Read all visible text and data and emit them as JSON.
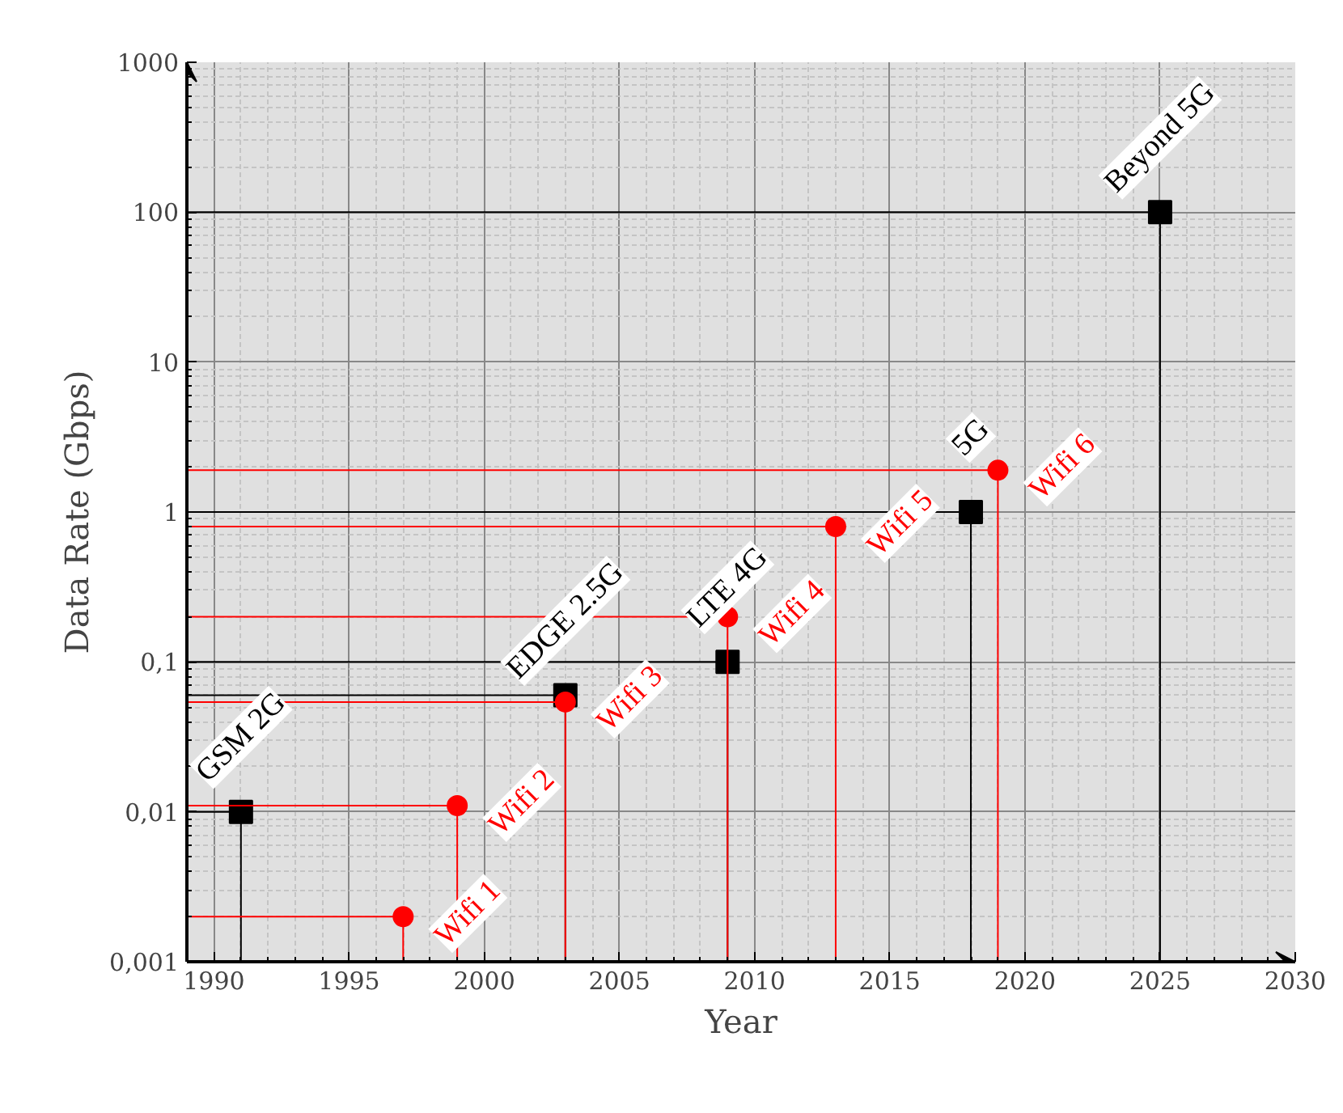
{
  "chart_data": {
    "type": "scatter",
    "xlabel": "Year",
    "ylabel": "Data Rate (Gbps)",
    "xlim": [
      1989,
      2030
    ],
    "ylim": [
      0.001,
      1000
    ],
    "log": "y",
    "grid": true,
    "annotations": [
      {
        "text": "GSM 2G",
        "x": 1991,
        "y": 0.01
      },
      {
        "text": "EDGE 2.5G",
        "x": 2003,
        "y": 0.06
      },
      {
        "text": "LTE 4G",
        "x": 2009,
        "y": 0.1
      },
      {
        "text": "5G",
        "x": 2018,
        "y": 1
      },
      {
        "text": "Beyond 5G",
        "x": 2025,
        "y": 100
      },
      {
        "text": "Wifi 1",
        "x": 1997,
        "y": 0.002
      },
      {
        "text": "Wifi 2",
        "x": 1999,
        "y": 0.011
      },
      {
        "text": "Wifi 3",
        "x": 2003,
        "y": 0.054
      },
      {
        "text": "Wifi 4",
        "x": 2009,
        "y": 0.2
      },
      {
        "text": "Wifi 5",
        "x": 2013,
        "y": 0.8
      },
      {
        "text": "Wifi 6",
        "x": 2019,
        "y": 1.9
      }
    ],
    "xticks": [
      1990,
      1995,
      2000,
      2005,
      2010,
      2015,
      2020,
      2025,
      2030
    ],
    "yticks": [
      {
        "value": 0.001,
        "label": "0,001"
      },
      {
        "value": 0.01,
        "label": "0,01"
      },
      {
        "value": 0.1,
        "label": "0,1"
      },
      1,
      10,
      100,
      1000
    ],
    "series": [
      {
        "color": "#000000",
        "marker": "square",
        "x": [
          1991,
          2003,
          2009,
          2018,
          2025
        ],
        "values": [
          0.01,
          0.06,
          0.1,
          1,
          100
        ]
      },
      {
        "color": "#ff0000",
        "marker": "circle",
        "x": [
          1997,
          1999,
          2003,
          2009,
          2013,
          2019
        ],
        "values": [
          0.002,
          0.011,
          0.054,
          0.2,
          0.8,
          1.9
        ]
      }
    ]
  }
}
